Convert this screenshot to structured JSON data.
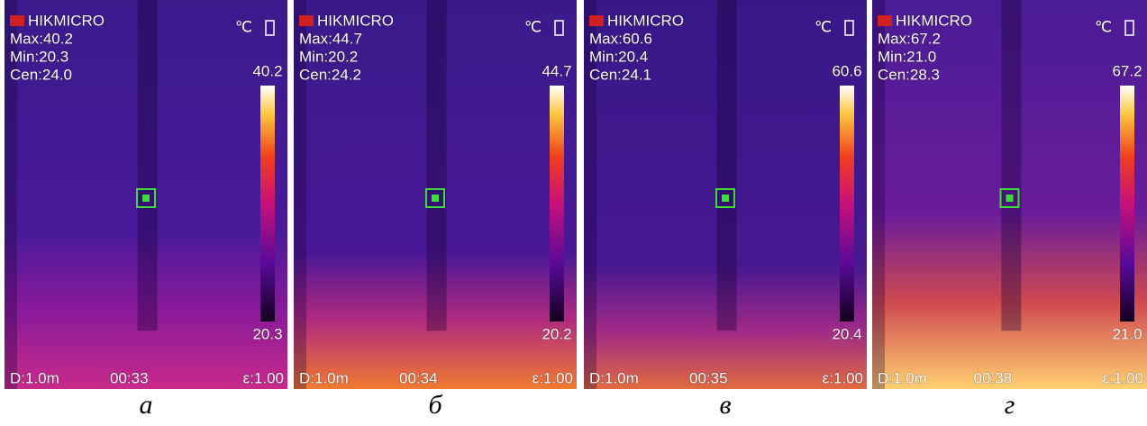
{
  "brand": "HIKMICRO",
  "unit": "℃",
  "panels": [
    {
      "caption": "а",
      "max": "Max:40.2",
      "min": "Min:20.3",
      "cen": "Cen:24.0",
      "scale_top": "40.2",
      "scale_bottom": "20.3",
      "distance": "D:1.0m",
      "time": "00:33",
      "emissivity": "ε:1.00"
    },
    {
      "caption": "б",
      "max": "Max:44.7",
      "min": "Min:20.2",
      "cen": "Cen:24.2",
      "scale_top": "44.7",
      "scale_bottom": "20.2",
      "distance": "D:1.0m",
      "time": "00:34",
      "emissivity": "ε:1.00"
    },
    {
      "caption": "в",
      "max": "Max:60.6",
      "min": "Min:20.4",
      "cen": "Cen:24.1",
      "scale_top": "60.6",
      "scale_bottom": "20.4",
      "distance": "D:1.0m",
      "time": "00:35",
      "emissivity": "ε:1.00"
    },
    {
      "caption": "г",
      "max": "Max:67.2",
      "min": "Min:21.0",
      "cen": "Cen:28.3",
      "scale_top": "67.2",
      "scale_bottom": "21.0",
      "distance": "D:1.0m",
      "time": "00:38",
      "emissivity": "ε:1.00"
    }
  ]
}
